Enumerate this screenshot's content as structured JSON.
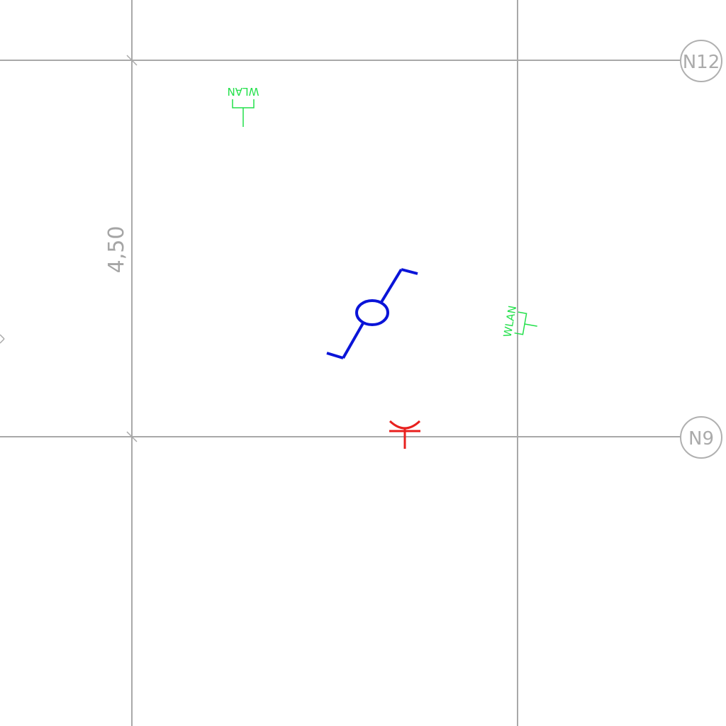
{
  "grid_labels": {
    "top": "N12",
    "bottom": "N9"
  },
  "dimension": {
    "value": "4,50"
  },
  "symbols": {
    "wlan_top_label": "WLAN",
    "wlan_right_label": "WLAN",
    "outlet_icon": "circle-outlet-icon",
    "antenna_icon": "antenna-icon"
  },
  "colors": {
    "grid": "#a9a9a9",
    "wlan": "#22e04a",
    "outlet": "#0a14d8",
    "antenna": "#e8201e"
  }
}
